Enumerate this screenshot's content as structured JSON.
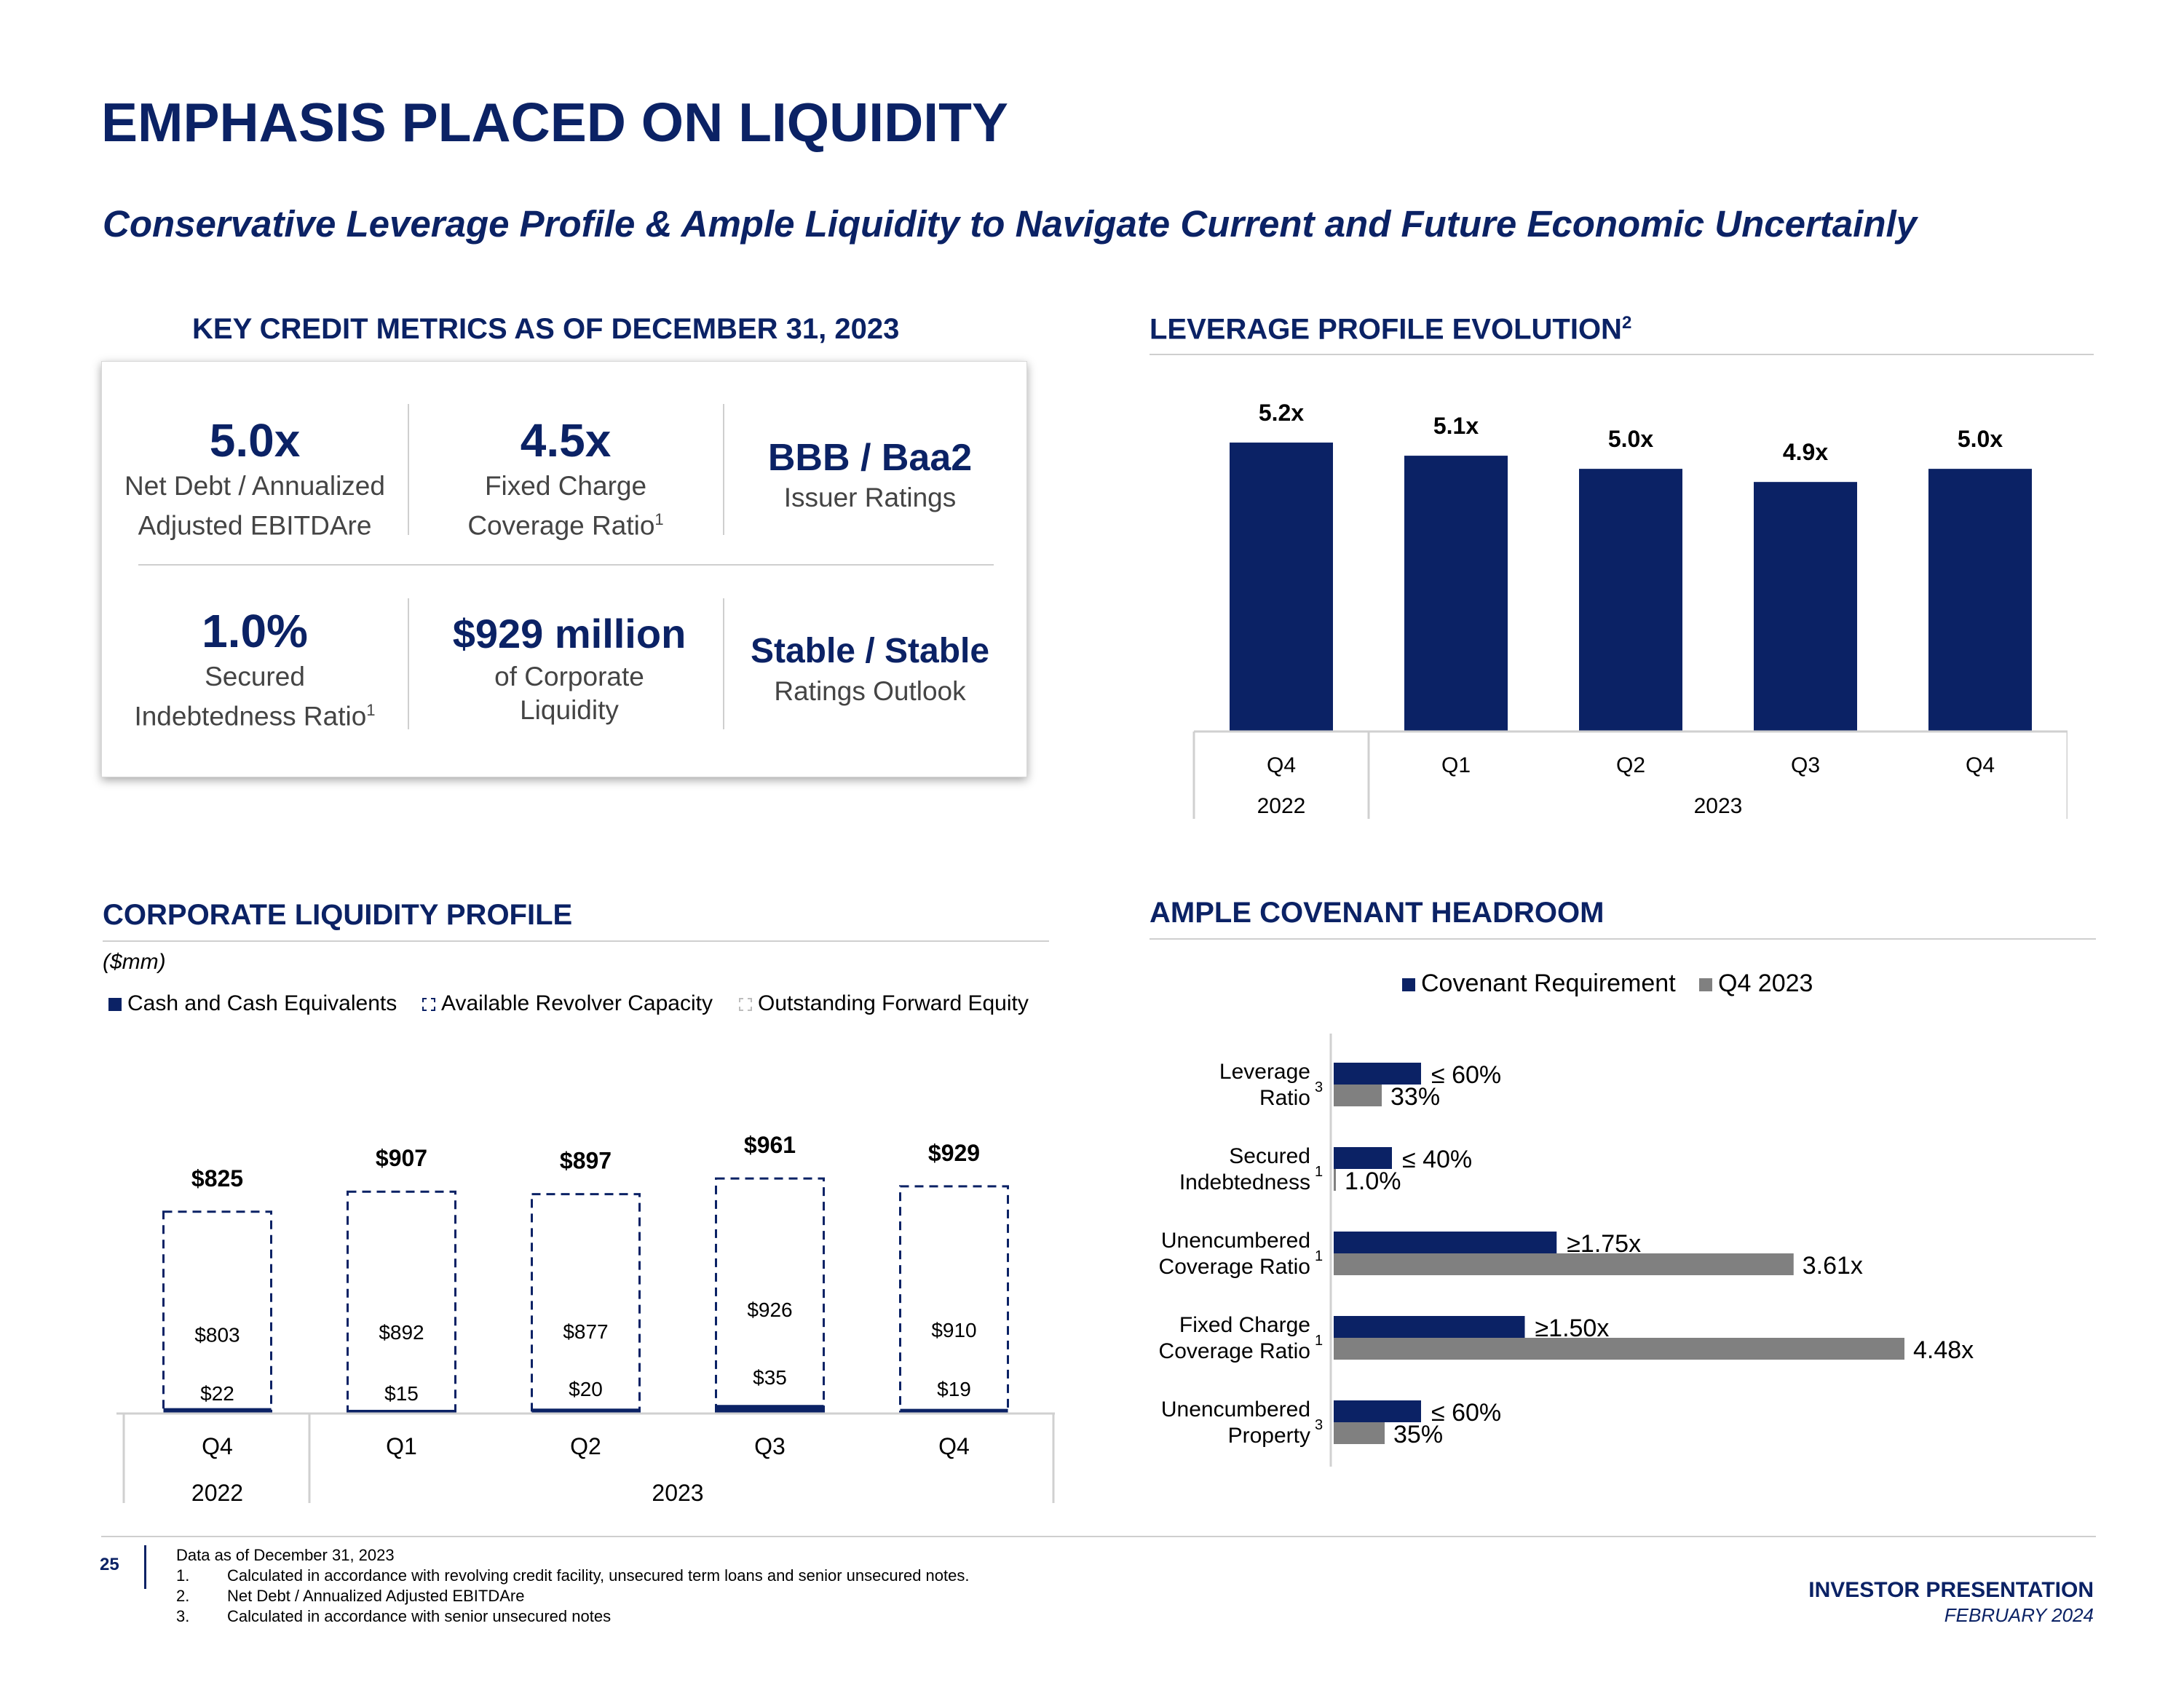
{
  "title": "EMPHASIS PLACED ON LIQUIDITY",
  "subtitle": "Conservative Leverage Profile & Ample Liquidity to Navigate Current and Future Economic Uncertainly",
  "key_metrics": {
    "heading": "KEY CREDIT METRICS AS OF DECEMBER 31, 2023",
    "items": [
      {
        "value": "5.0x",
        "label1": "Net Debt / Annualized",
        "label2": "Adjusted EBITDAre",
        "sup": ""
      },
      {
        "value": "4.5x",
        "label1": "Fixed Charge",
        "label2": "Coverage Ratio",
        "sup": "1"
      },
      {
        "value": "BBB / Baa2",
        "label1": "Issuer Ratings",
        "label2": "",
        "sup": ""
      },
      {
        "value": "1.0%",
        "label1": "Secured",
        "label2": "Indebtedness Ratio",
        "sup": "1"
      },
      {
        "value": "$929 million",
        "label1": "of Corporate",
        "label2": "Liquidity",
        "sup": ""
      },
      {
        "value": "Stable / Stable",
        "label1": "Ratings Outlook",
        "label2": "",
        "sup": ""
      }
    ]
  },
  "leverage": {
    "heading": "LEVERAGE PROFILE EVOLUTION",
    "heading_sup": "2"
  },
  "liquidity": {
    "heading": "CORPORATE LIQUIDITY PROFILE",
    "units": "($mm)",
    "legend": [
      "Cash and Cash Equivalents",
      "Available Revolver Capacity",
      "Outstanding Forward Equity"
    ]
  },
  "covenant": {
    "heading": "AMPLE COVENANT HEADROOM",
    "legend": [
      "Covenant Requirement",
      "Q4 2023"
    ]
  },
  "chart_data": [
    {
      "type": "bar",
      "title": "LEVERAGE PROFILE EVOLUTION",
      "categories": [
        "Q4",
        "Q1",
        "Q2",
        "Q3",
        "Q4"
      ],
      "category_groups": [
        "2022",
        "2023"
      ],
      "values": [
        5.2,
        5.1,
        5.0,
        4.9,
        5.0
      ],
      "data_labels": [
        "5.2x",
        "5.1x",
        "5.0x",
        "4.9x",
        "5.0x"
      ],
      "ylim": [
        3.0,
        5.3
      ],
      "color": "#0b2265"
    },
    {
      "type": "bar",
      "stacked": true,
      "title": "CORPORATE LIQUIDITY PROFILE",
      "categories": [
        "Q4",
        "Q1",
        "Q2",
        "Q3",
        "Q4"
      ],
      "category_groups": [
        "2022",
        "2023"
      ],
      "series": [
        {
          "name": "Cash and Cash Equivalents",
          "values": [
            22,
            15,
            20,
            35,
            19
          ],
          "labels": [
            "$22",
            "$15",
            "$20",
            "$35",
            "$19"
          ]
        },
        {
          "name": "Available Revolver Capacity",
          "values": [
            803,
            892,
            877,
            926,
            910
          ],
          "labels": [
            "$803",
            "$892",
            "$877",
            "$926",
            "$910"
          ]
        },
        {
          "name": "Outstanding Forward Equity",
          "values": [
            0,
            0,
            0,
            0,
            0
          ]
        }
      ],
      "totals": [
        "$825",
        "$907",
        "$897",
        "$961",
        "$929"
      ],
      "ylim": [
        0,
        1000
      ]
    },
    {
      "type": "bar",
      "orientation": "horizontal",
      "title": "AMPLE COVENANT HEADROOM",
      "categories": [
        {
          "line1": "Leverage",
          "line2": "Ratio",
          "sup": "3"
        },
        {
          "line1": "Secured",
          "line2": "Indebtedness",
          "sup": "1"
        },
        {
          "line1": "Unencumbered",
          "line2": "Coverage Ratio",
          "sup": "1"
        },
        {
          "line1": "Fixed Charge",
          "line2": "Coverage Ratio",
          "sup": "1"
        },
        {
          "line1": "Unencumbered",
          "line2": "Property",
          "sup": "3"
        }
      ],
      "series": [
        {
          "name": "Covenant Requirement",
          "values": [
            60,
            40,
            175,
            150,
            60
          ],
          "labels": [
            "≤ 60%",
            "≤ 40%",
            "≥1.75x",
            "≥1.50x",
            "≤ 60%"
          ],
          "color": "#0b2265"
        },
        {
          "name": "Q4 2023",
          "values": [
            33,
            1,
            361,
            448,
            35
          ],
          "labels": [
            "33%",
            "1.0%",
            "3.61x",
            "4.48x",
            "35%"
          ],
          "color": "#808080"
        }
      ]
    }
  ],
  "footnotes": {
    "intro": "Data as of December 31, 2023",
    "items": [
      {
        "num": "1.",
        "text": "Calculated in accordance with revolving credit facility, unsecured term loans and senior unsecured notes."
      },
      {
        "num": "2.",
        "text": "Net Debt / Annualized Adjusted EBITDAre"
      },
      {
        "num": "3.",
        "text": "Calculated in accordance with senior unsecured notes"
      }
    ]
  },
  "footer": {
    "page_number": "25",
    "title": "INVESTOR PRESENTATION",
    "date": "FEBRUARY 2024"
  }
}
